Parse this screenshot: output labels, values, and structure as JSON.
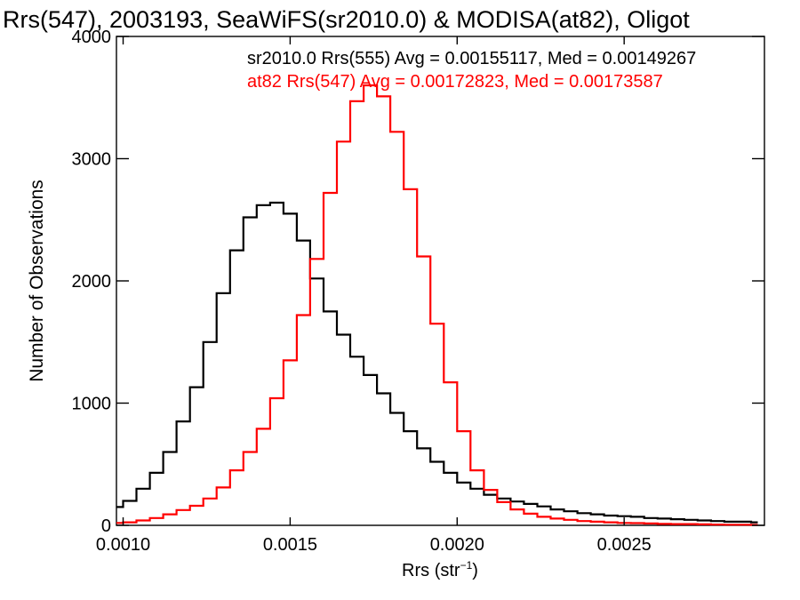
{
  "chart_data": {
    "type": "histogram",
    "title": "Rrs(547), 2003193, SeaWiFS(sr2010.0) & MODISA(at82), Oligot",
    "xlabel": "Rrs (str",
    "xlabel_sup": "−1",
    "xlabel_suffix": ")",
    "ylabel": "Number of Observations",
    "xlim": [
      0.00098,
      0.00292
    ],
    "ylim": [
      0,
      4000
    ],
    "x_ticks": [
      0.001,
      0.0015,
      0.002,
      0.0025
    ],
    "x_tick_labels": [
      "0.0010",
      "0.0015",
      "0.0020",
      "0.0025"
    ],
    "y_ticks": [
      0,
      1000,
      2000,
      3000,
      4000
    ],
    "y_tick_labels": [
      "0",
      "1000",
      "2000",
      "3000",
      "4000"
    ],
    "annotations": [
      {
        "text": "sr2010.0 Rrs(555) Avg = 0.00155117, Med = 0.00149267",
        "color": "#000000"
      },
      {
        "text": "at82 Rrs(547) Avg = 0.00172823, Med = 0.00173587",
        "color": "#ff0000"
      }
    ],
    "series": [
      {
        "color": "#000000",
        "points": [
          [
            0.00098,
            150
          ],
          [
            0.00102,
            200
          ],
          [
            0.00106,
            300
          ],
          [
            0.0011,
            430
          ],
          [
            0.00114,
            600
          ],
          [
            0.00118,
            850
          ],
          [
            0.00122,
            1130
          ],
          [
            0.00126,
            1500
          ],
          [
            0.0013,
            1900
          ],
          [
            0.00134,
            2250
          ],
          [
            0.00138,
            2520
          ],
          [
            0.00142,
            2620
          ],
          [
            0.00146,
            2640
          ],
          [
            0.0015,
            2550
          ],
          [
            0.00154,
            2330
          ],
          [
            0.00158,
            2020
          ],
          [
            0.00162,
            1750
          ],
          [
            0.00166,
            1560
          ],
          [
            0.0017,
            1380
          ],
          [
            0.00174,
            1230
          ],
          [
            0.00178,
            1080
          ],
          [
            0.00182,
            920
          ],
          [
            0.00186,
            770
          ],
          [
            0.0019,
            630
          ],
          [
            0.00194,
            520
          ],
          [
            0.00198,
            430
          ],
          [
            0.00202,
            350
          ],
          [
            0.00206,
            300
          ],
          [
            0.0021,
            250
          ],
          [
            0.00214,
            220
          ],
          [
            0.00218,
            195
          ],
          [
            0.00222,
            175
          ],
          [
            0.00226,
            155
          ],
          [
            0.0023,
            130
          ],
          [
            0.00234,
            115
          ],
          [
            0.00238,
            100
          ],
          [
            0.00242,
            90
          ],
          [
            0.00246,
            80
          ],
          [
            0.0025,
            75
          ],
          [
            0.00254,
            70
          ],
          [
            0.00258,
            60
          ],
          [
            0.00262,
            55
          ],
          [
            0.00266,
            50
          ],
          [
            0.0027,
            45
          ],
          [
            0.00274,
            40
          ],
          [
            0.00278,
            35
          ],
          [
            0.00282,
            30
          ],
          [
            0.00286,
            30
          ],
          [
            0.0029,
            25
          ]
        ]
      },
      {
        "color": "#ff0000",
        "points": [
          [
            0.00098,
            20
          ],
          [
            0.00102,
            25
          ],
          [
            0.00106,
            40
          ],
          [
            0.0011,
            60
          ],
          [
            0.00114,
            90
          ],
          [
            0.00118,
            125
          ],
          [
            0.00122,
            160
          ],
          [
            0.00126,
            220
          ],
          [
            0.0013,
            310
          ],
          [
            0.00134,
            450
          ],
          [
            0.00138,
            600
          ],
          [
            0.00142,
            790
          ],
          [
            0.00146,
            1040
          ],
          [
            0.0015,
            1350
          ],
          [
            0.00154,
            1720
          ],
          [
            0.00158,
            2180
          ],
          [
            0.00162,
            2720
          ],
          [
            0.00166,
            3140
          ],
          [
            0.0017,
            3470
          ],
          [
            0.00174,
            3600
          ],
          [
            0.00178,
            3510
          ],
          [
            0.00182,
            3220
          ],
          [
            0.00186,
            2750
          ],
          [
            0.0019,
            2200
          ],
          [
            0.00194,
            1650
          ],
          [
            0.00198,
            1170
          ],
          [
            0.00202,
            770
          ],
          [
            0.00206,
            450
          ],
          [
            0.0021,
            290
          ],
          [
            0.00214,
            190
          ],
          [
            0.00218,
            130
          ],
          [
            0.00222,
            95
          ],
          [
            0.00226,
            70
          ],
          [
            0.0023,
            55
          ],
          [
            0.00234,
            45
          ],
          [
            0.00238,
            35
          ],
          [
            0.00242,
            30
          ],
          [
            0.00246,
            25
          ],
          [
            0.0025,
            20
          ],
          [
            0.00254,
            18
          ],
          [
            0.00258,
            15
          ],
          [
            0.00262,
            12
          ],
          [
            0.00266,
            10
          ],
          [
            0.0027,
            10
          ],
          [
            0.00274,
            8
          ],
          [
            0.00278,
            6
          ],
          [
            0.00282,
            5
          ],
          [
            0.00286,
            5
          ],
          [
            0.0029,
            4
          ]
        ]
      }
    ]
  }
}
